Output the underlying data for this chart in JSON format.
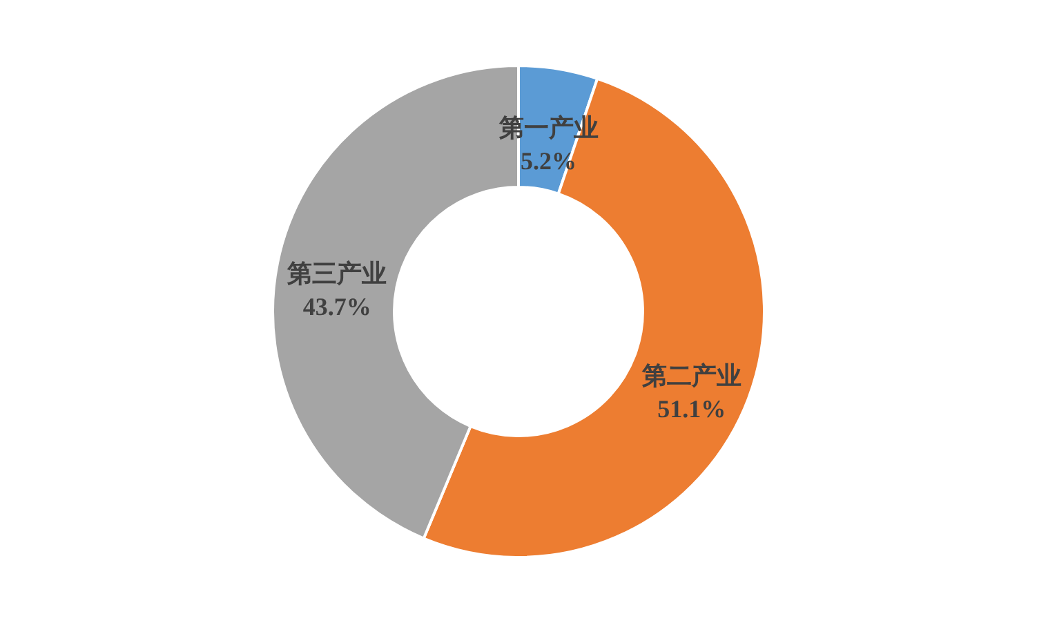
{
  "chart_data": {
    "type": "donut",
    "categories": [
      "第一产业",
      "第二产业",
      "第三产业"
    ],
    "values": [
      5.2,
      51.1,
      43.7
    ],
    "colors": [
      "#5b9bd5",
      "#ed7d31",
      "#a5a5a5"
    ],
    "value_labels": [
      "5.2%",
      "51.1%",
      "43.7%"
    ]
  }
}
